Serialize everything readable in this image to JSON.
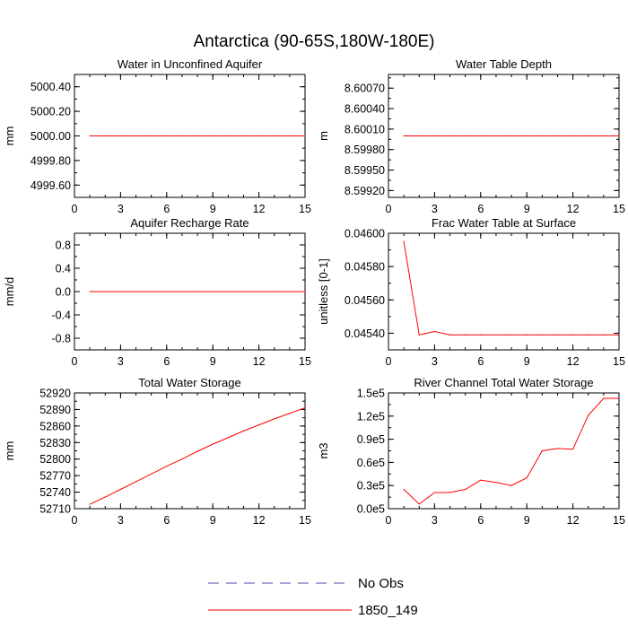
{
  "figure": {
    "title": "Antarctica (90-65S,180W-180E)",
    "series_color": "#ff0000",
    "obs_color": "#4a4aa8"
  },
  "legend": {
    "items": [
      {
        "label": "No Obs",
        "style": "dashed",
        "color": "#4a4aa8"
      },
      {
        "label": "1850_149",
        "style": "solid",
        "color": "#ff0000"
      }
    ]
  },
  "chart_data": [
    {
      "type": "line",
      "title": "Water in Unconfined Aquifer",
      "ylabel": "mm",
      "xlim": [
        0,
        15
      ],
      "ylim": [
        4999.5,
        5000.5
      ],
      "xticks": [
        "0",
        "3",
        "6",
        "9",
        "12",
        "15"
      ],
      "yticks": [
        {
          "v": 4999.6,
          "t": "4999.60"
        },
        {
          "v": 4999.8,
          "t": "4999.80"
        },
        {
          "v": 5000.0,
          "t": "5000.00"
        },
        {
          "v": 5000.2,
          "t": "5000.20"
        },
        {
          "v": 5000.4,
          "t": "5000.40"
        }
      ],
      "series": [
        {
          "name": "1850_149",
          "x": [
            1,
            2,
            3,
            4,
            5,
            6,
            7,
            8,
            9,
            10,
            11,
            12,
            13,
            14,
            15
          ],
          "values": [
            5000,
            5000,
            5000,
            5000,
            5000,
            5000,
            5000,
            5000,
            5000,
            5000,
            5000,
            5000,
            5000,
            5000,
            5000
          ]
        }
      ]
    },
    {
      "type": "line",
      "title": "Water Table Depth",
      "ylabel": "m",
      "xlim": [
        0,
        15
      ],
      "ylim": [
        8.5991,
        8.6009
      ],
      "xticks": [
        "0",
        "3",
        "6",
        "9",
        "12",
        "15"
      ],
      "yticks": [
        {
          "v": 8.5992,
          "t": "8.59920"
        },
        {
          "v": 8.5995,
          "t": "8.59950"
        },
        {
          "v": 8.5998,
          "t": "8.59980"
        },
        {
          "v": 8.6001,
          "t": "8.60010"
        },
        {
          "v": 8.6004,
          "t": "8.60040"
        },
        {
          "v": 8.6007,
          "t": "8.60070"
        }
      ],
      "series": [
        {
          "name": "1850_149",
          "x": [
            1,
            2,
            3,
            4,
            5,
            6,
            7,
            8,
            9,
            10,
            11,
            12,
            13,
            14,
            15
          ],
          "values": [
            8.6,
            8.6,
            8.6,
            8.6,
            8.6,
            8.6,
            8.6,
            8.6,
            8.6,
            8.6,
            8.6,
            8.6,
            8.6,
            8.6,
            8.6
          ]
        }
      ]
    },
    {
      "type": "line",
      "title": "Aquifer Recharge Rate",
      "ylabel": "mm/d",
      "xlim": [
        0,
        15
      ],
      "ylim": [
        -1,
        1
      ],
      "xticks": [
        "0",
        "3",
        "6",
        "9",
        "12",
        "15"
      ],
      "yticks": [
        {
          "v": -0.8,
          "t": "-0.8"
        },
        {
          "v": -0.4,
          "t": "-0.4"
        },
        {
          "v": 0.0,
          "t": "0.0"
        },
        {
          "v": 0.4,
          "t": "0.4"
        },
        {
          "v": 0.8,
          "t": "0.8"
        }
      ],
      "series": [
        {
          "name": "1850_149",
          "x": [
            1,
            2,
            3,
            4,
            5,
            6,
            7,
            8,
            9,
            10,
            11,
            12,
            13,
            14,
            15
          ],
          "values": [
            0,
            0,
            0,
            0,
            0,
            0,
            0,
            0,
            0,
            0,
            0,
            0,
            0,
            0,
            0
          ]
        }
      ]
    },
    {
      "type": "line",
      "title": "Frac Water Table at Surface",
      "ylabel": "unitless [0-1]",
      "xlim": [
        0,
        15
      ],
      "ylim": [
        0.0453,
        0.046
      ],
      "xticks": [
        "0",
        "3",
        "6",
        "9",
        "12",
        "15"
      ],
      "yticks": [
        {
          "v": 0.0454,
          "t": "0.04540"
        },
        {
          "v": 0.0456,
          "t": "0.04560"
        },
        {
          "v": 0.0458,
          "t": "0.04580"
        },
        {
          "v": 0.046,
          "t": "0.04600"
        }
      ],
      "series": [
        {
          "name": "1850_149",
          "x": [
            1,
            2,
            3,
            4,
            5,
            6,
            7,
            8,
            9,
            10,
            11,
            12,
            13,
            14,
            15
          ],
          "values": [
            0.04595,
            0.04539,
            0.04541,
            0.04539,
            0.04539,
            0.04539,
            0.04539,
            0.04539,
            0.04539,
            0.04539,
            0.04539,
            0.04539,
            0.04539,
            0.04539,
            0.04539
          ]
        }
      ]
    },
    {
      "type": "line",
      "title": "Total Water Storage",
      "ylabel": "mm",
      "xlim": [
        0,
        15
      ],
      "ylim": [
        52710,
        52920
      ],
      "xticks": [
        "0",
        "3",
        "6",
        "9",
        "12",
        "15"
      ],
      "yticks": [
        {
          "v": 52710,
          "t": "52710"
        },
        {
          "v": 52740,
          "t": "52740"
        },
        {
          "v": 52770,
          "t": "52770"
        },
        {
          "v": 52800,
          "t": "52800"
        },
        {
          "v": 52830,
          "t": "52830"
        },
        {
          "v": 52860,
          "t": "52860"
        },
        {
          "v": 52890,
          "t": "52890"
        },
        {
          "v": 52920,
          "t": "52920"
        }
      ],
      "series": [
        {
          "name": "1850_149",
          "x": [
            1,
            2,
            3,
            4,
            5,
            6,
            7,
            8,
            9,
            10,
            11,
            12,
            13,
            14,
            15
          ],
          "values": [
            52718,
            52731,
            52745,
            52759,
            52773,
            52787,
            52800,
            52814,
            52827,
            52839,
            52851,
            52862,
            52873,
            52883,
            52893
          ]
        }
      ]
    },
    {
      "type": "line",
      "title": "River Channel Total Water Storage",
      "ylabel": "m3",
      "xlim": [
        0,
        15
      ],
      "ylim": [
        0,
        150000
      ],
      "xticks": [
        "0",
        "3",
        "6",
        "9",
        "12",
        "15"
      ],
      "yticks": [
        {
          "v": 0,
          "t": "0.0e5"
        },
        {
          "v": 30000,
          "t": "0.3e5"
        },
        {
          "v": 60000,
          "t": "0.6e5"
        },
        {
          "v": 90000,
          "t": "0.9e5"
        },
        {
          "v": 120000,
          "t": "1.2e5"
        },
        {
          "v": 150000,
          "t": "1.5e5"
        }
      ],
      "series": [
        {
          "name": "1850_149",
          "x": [
            1,
            2,
            3,
            4,
            5,
            6,
            7,
            8,
            9,
            10,
            11,
            12,
            13,
            14,
            15
          ],
          "values": [
            25000,
            6000,
            21000,
            21000,
            25000,
            37000,
            34000,
            30000,
            40000,
            75000,
            78000,
            77000,
            121000,
            143000,
            143000
          ]
        }
      ]
    }
  ]
}
